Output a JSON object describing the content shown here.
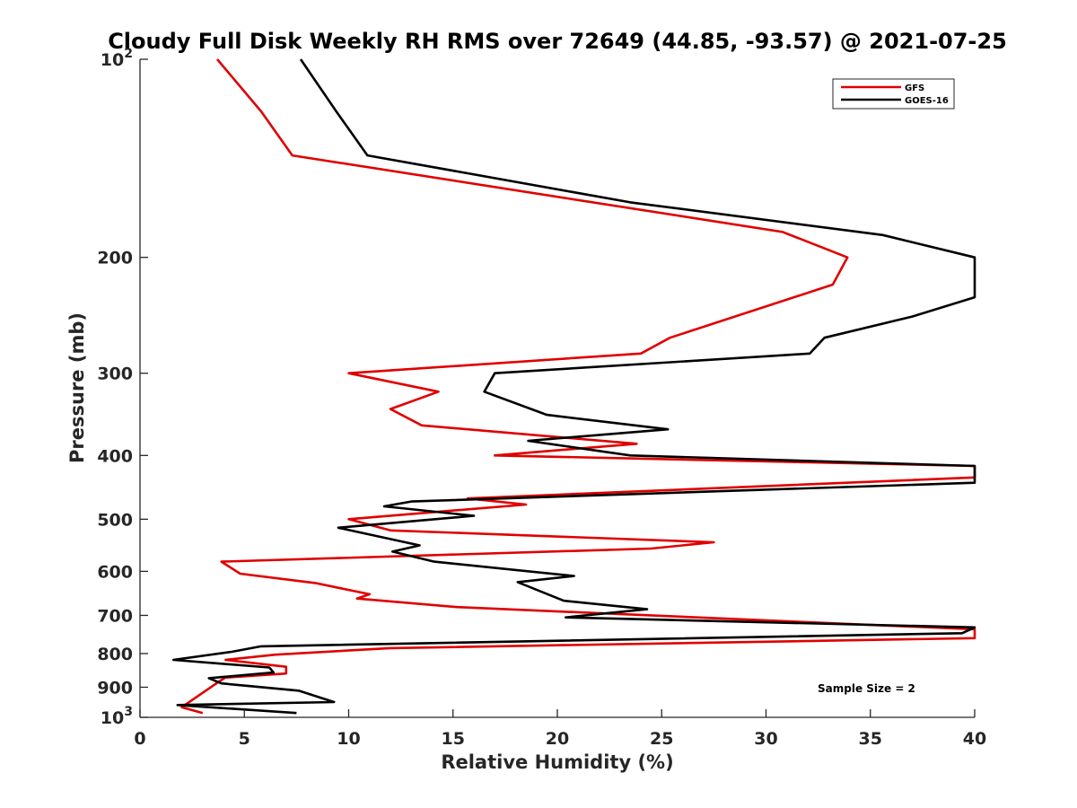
{
  "chart_data": {
    "type": "line",
    "title": "Cloudy Full Disk Weekly RH RMS over 72649 (44.85, -93.57) @ 2021-07-25",
    "xlabel": "Relative Humidity (%)",
    "ylabel": "Pressure (mb)",
    "xlim": [
      0,
      40
    ],
    "ylim": [
      100,
      1000
    ],
    "y_scale": "log",
    "y_reversed": true,
    "grid": false,
    "legend_position": "top-right",
    "x_ticks": [
      "0",
      "5",
      "10",
      "15",
      "20",
      "25",
      "30",
      "35",
      "40"
    ],
    "y_ticks": [
      {
        "value": 100,
        "base": "10",
        "exp": "2"
      },
      {
        "value": 200,
        "label": "200"
      },
      {
        "value": 300,
        "label": "300"
      },
      {
        "value": 400,
        "label": "400"
      },
      {
        "value": 500,
        "label": "500"
      },
      {
        "value": 600,
        "label": "600"
      },
      {
        "value": 700,
        "label": "700"
      },
      {
        "value": 800,
        "label": "800"
      },
      {
        "value": 900,
        "label": "900"
      },
      {
        "value": 1000,
        "base": "10",
        "exp": "3"
      }
    ],
    "series": [
      {
        "name": "GFS",
        "color": "#e00000",
        "points": [
          [
            3.7,
            100
          ],
          [
            5.8,
            120
          ],
          [
            7.3,
            140
          ],
          [
            30.8,
            183
          ],
          [
            33.9,
            200
          ],
          [
            33.2,
            220
          ],
          [
            25.4,
            265
          ],
          [
            24.0,
            280
          ],
          [
            10.0,
            300
          ],
          [
            14.3,
            320
          ],
          [
            12.0,
            340
          ],
          [
            13.5,
            360
          ],
          [
            23.8,
            384
          ],
          [
            17.0,
            400
          ],
          [
            40,
            415
          ],
          [
            40,
            432
          ],
          [
            15.7,
            465
          ],
          [
            18.5,
            475
          ],
          [
            10.0,
            500
          ],
          [
            12.0,
            520
          ],
          [
            27.5,
            542
          ],
          [
            24.5,
            554
          ],
          [
            3.9,
            580
          ],
          [
            4.8,
            605
          ],
          [
            8.4,
            625
          ],
          [
            11.0,
            650
          ],
          [
            10.4,
            660
          ],
          [
            15.2,
            680
          ],
          [
            40,
            735
          ],
          [
            40,
            758
          ],
          [
            12.0,
            785
          ],
          [
            6.5,
            803
          ],
          [
            4.1,
            818
          ],
          [
            7.0,
            838
          ],
          [
            7.0,
            858
          ],
          [
            4.1,
            870
          ],
          [
            3.8,
            882
          ],
          [
            2.0,
            965
          ],
          [
            3.0,
            985
          ]
        ]
      },
      {
        "name": "GOES-16",
        "color": "#000000",
        "points": [
          [
            7.7,
            100
          ],
          [
            9.4,
            120
          ],
          [
            10.9,
            140
          ],
          [
            23.5,
            165
          ],
          [
            35.6,
            185
          ],
          [
            40,
            200
          ],
          [
            40,
            230
          ],
          [
            37.0,
            246
          ],
          [
            32.8,
            265
          ],
          [
            32.1,
            280
          ],
          [
            17.0,
            300
          ],
          [
            16.5,
            320
          ],
          [
            19.5,
            347
          ],
          [
            25.3,
            365
          ],
          [
            18.6,
            380
          ],
          [
            23.5,
            400
          ],
          [
            40,
            415
          ],
          [
            40,
            440
          ],
          [
            13.0,
            470
          ],
          [
            11.7,
            478
          ],
          [
            16.0,
            494
          ],
          [
            9.5,
            515
          ],
          [
            13.4,
            548
          ],
          [
            12.1,
            560
          ],
          [
            14.1,
            580
          ],
          [
            20.8,
            610
          ],
          [
            18.1,
            623
          ],
          [
            20.3,
            665
          ],
          [
            24.3,
            685
          ],
          [
            20.4,
            705
          ],
          [
            40,
            730
          ],
          [
            39.4,
            745
          ],
          [
            5.8,
            780
          ],
          [
            4.4,
            795
          ],
          [
            1.6,
            818
          ],
          [
            6.2,
            840
          ],
          [
            6.4,
            855
          ],
          [
            3.3,
            872
          ],
          [
            3.9,
            888
          ],
          [
            7.6,
            911
          ],
          [
            9.3,
            948
          ],
          [
            1.8,
            958
          ],
          [
            7.5,
            985
          ]
        ]
      }
    ],
    "legend": [
      "GFS",
      "GOES-16"
    ],
    "annotation": "Sample Size = 2"
  }
}
